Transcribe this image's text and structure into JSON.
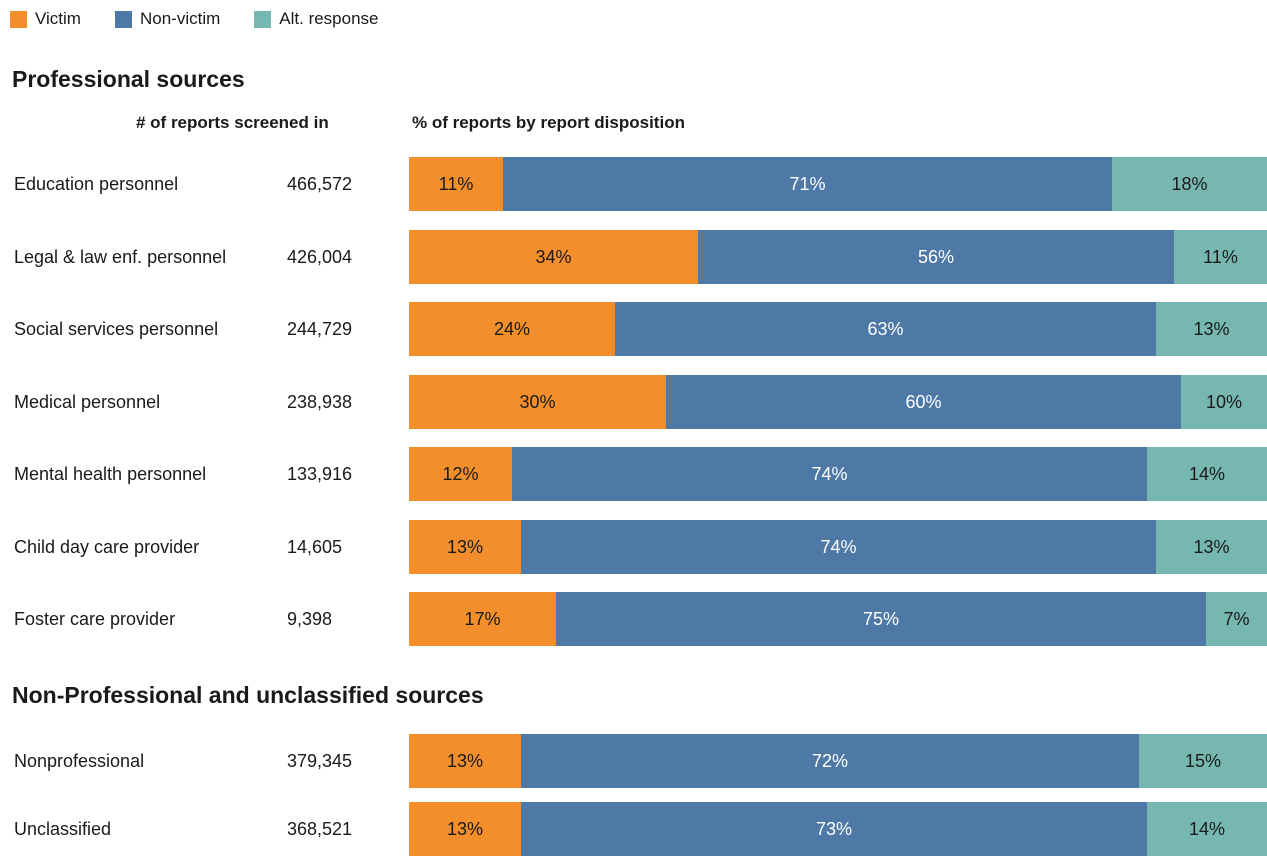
{
  "colors": {
    "victim": "#F28E2B",
    "nonvictim": "#4E79A7",
    "alt": "#76B7B2"
  },
  "legend": [
    {
      "key": "victim",
      "label": "Victim"
    },
    {
      "key": "nonvictim",
      "label": "Non-victim"
    },
    {
      "key": "alt",
      "label": "Alt. response"
    }
  ],
  "headers": {
    "count": "# of reports screened in",
    "percent": "% of reports by report disposition"
  },
  "chart_data": {
    "type": "bar",
    "orientation": "horizontal",
    "stacked": true,
    "normalized": true,
    "grid": false,
    "legend_position": "top-left",
    "series_names": [
      "Victim",
      "Non-victim",
      "Alt. response"
    ],
    "groups": [
      {
        "title": "Professional sources",
        "rows": [
          {
            "label": "Education personnel",
            "count": "466,572",
            "values": [
              11,
              71,
              18
            ],
            "labels": [
              "11%",
              "71%",
              "18%"
            ]
          },
          {
            "label": "Legal & law enf. personnel",
            "count": "426,004",
            "values": [
              34,
              56,
              11
            ],
            "labels": [
              "34%",
              "56%",
              "11%"
            ]
          },
          {
            "label": "Social services personnel",
            "count": "244,729",
            "values": [
              24,
              63,
              13
            ],
            "labels": [
              "24%",
              "63%",
              "13%"
            ]
          },
          {
            "label": "Medical personnel",
            "count": "238,938",
            "values": [
              30,
              60,
              10
            ],
            "labels": [
              "30%",
              "60%",
              "10%"
            ]
          },
          {
            "label": "Mental health personnel",
            "count": "133,916",
            "values": [
              12,
              74,
              14
            ],
            "labels": [
              "12%",
              "74%",
              "14%"
            ]
          },
          {
            "label": "Child day care provider",
            "count": "14,605",
            "values": [
              13,
              74,
              13
            ],
            "labels": [
              "13%",
              "74%",
              "13%"
            ]
          },
          {
            "label": "Foster care provider",
            "count": "9,398",
            "values": [
              17,
              75,
              7
            ],
            "labels": [
              "17%",
              "75%",
              "7%"
            ]
          }
        ]
      },
      {
        "title": "Non-Professional and unclassified sources",
        "rows": [
          {
            "label": "Nonprofessional",
            "count": "379,345",
            "values": [
              13,
              72,
              15
            ],
            "labels": [
              "13%",
              "72%",
              "15%"
            ]
          },
          {
            "label": "Unclassified",
            "count": "368,521",
            "values": [
              13,
              73,
              14
            ],
            "labels": [
              "13%",
              "73%",
              "14%"
            ]
          }
        ]
      }
    ]
  }
}
